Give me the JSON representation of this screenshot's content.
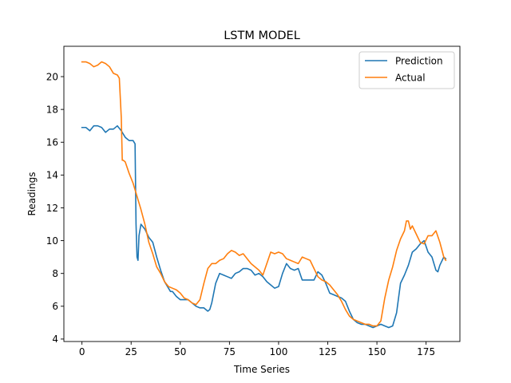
{
  "chart_data": {
    "type": "line",
    "title": "LSTM MODEL",
    "xlabel": "Time Series",
    "ylabel": "Readings",
    "xlim": [
      -9.2,
      192.2
    ],
    "ylim": [
      3.85,
      21.85
    ],
    "xticks": [
      0,
      25,
      50,
      75,
      100,
      125,
      150,
      175
    ],
    "yticks": [
      4,
      6,
      8,
      10,
      12,
      14,
      16,
      18,
      20
    ],
    "grid": false,
    "legend_position": "top-right",
    "series": [
      {
        "name": "Prediction",
        "color": "#1f77b4",
        "points": [
          [
            0,
            16.9
          ],
          [
            2,
            16.9
          ],
          [
            4,
            16.7
          ],
          [
            6,
            17.0
          ],
          [
            8,
            17.0
          ],
          [
            10,
            16.9
          ],
          [
            12,
            16.6
          ],
          [
            14,
            16.8
          ],
          [
            16,
            16.8
          ],
          [
            18,
            17.0
          ],
          [
            20,
            16.7
          ],
          [
            22,
            16.3
          ],
          [
            24,
            16.1
          ],
          [
            26,
            16.1
          ],
          [
            27,
            15.9
          ],
          [
            27.5,
            11.0
          ],
          [
            28,
            9.0
          ],
          [
            28.5,
            8.8
          ],
          [
            29,
            10.3
          ],
          [
            30,
            11.0
          ],
          [
            32,
            10.7
          ],
          [
            34,
            10.2
          ],
          [
            36,
            9.9
          ],
          [
            38,
            9.0
          ],
          [
            40,
            8.2
          ],
          [
            42,
            7.5
          ],
          [
            44,
            7.1
          ],
          [
            45,
            6.9
          ],
          [
            46,
            6.9
          ],
          [
            48,
            6.6
          ],
          [
            50,
            6.4
          ],
          [
            52,
            6.4
          ],
          [
            54,
            6.4
          ],
          [
            56,
            6.2
          ],
          [
            58,
            6.0
          ],
          [
            60,
            5.9
          ],
          [
            62,
            5.9
          ],
          [
            64,
            5.7
          ],
          [
            65,
            5.8
          ],
          [
            66,
            6.2
          ],
          [
            68,
            7.4
          ],
          [
            70,
            8.0
          ],
          [
            72,
            7.9
          ],
          [
            74,
            7.8
          ],
          [
            76,
            7.7
          ],
          [
            78,
            8.0
          ],
          [
            80,
            8.1
          ],
          [
            82,
            8.3
          ],
          [
            84,
            8.3
          ],
          [
            86,
            8.2
          ],
          [
            88,
            7.9
          ],
          [
            90,
            8.0
          ],
          [
            92,
            7.8
          ],
          [
            94,
            7.5
          ],
          [
            96,
            7.3
          ],
          [
            98,
            7.1
          ],
          [
            100,
            7.2
          ],
          [
            102,
            8.0
          ],
          [
            104,
            8.6
          ],
          [
            106,
            8.3
          ],
          [
            108,
            8.2
          ],
          [
            110,
            8.3
          ],
          [
            112,
            7.6
          ],
          [
            114,
            7.6
          ],
          [
            116,
            7.6
          ],
          [
            118,
            7.6
          ],
          [
            120,
            8.1
          ],
          [
            122,
            7.9
          ],
          [
            124,
            7.4
          ],
          [
            126,
            6.8
          ],
          [
            128,
            6.7
          ],
          [
            130,
            6.6
          ],
          [
            132,
            6.5
          ],
          [
            134,
            6.3
          ],
          [
            136,
            5.7
          ],
          [
            138,
            5.2
          ],
          [
            140,
            5.0
          ],
          [
            142,
            4.9
          ],
          [
            144,
            4.9
          ],
          [
            146,
            4.8
          ],
          [
            148,
            4.7
          ],
          [
            150,
            4.8
          ],
          [
            152,
            4.9
          ],
          [
            154,
            4.8
          ],
          [
            156,
            4.7
          ],
          [
            158,
            4.8
          ],
          [
            160,
            5.6
          ],
          [
            162,
            7.4
          ],
          [
            164,
            7.9
          ],
          [
            166,
            8.5
          ],
          [
            168,
            9.3
          ],
          [
            170,
            9.5
          ],
          [
            172,
            9.8
          ],
          [
            174,
            10.0
          ],
          [
            176,
            9.3
          ],
          [
            178,
            9.0
          ],
          [
            180,
            8.2
          ],
          [
            181,
            8.1
          ],
          [
            182,
            8.5
          ],
          [
            184,
            9.0
          ],
          [
            185,
            8.9
          ]
        ]
      },
      {
        "name": "Actual",
        "color": "#ff7f0e",
        "points": [
          [
            0,
            20.9
          ],
          [
            2,
            20.9
          ],
          [
            4,
            20.8
          ],
          [
            6,
            20.6
          ],
          [
            8,
            20.7
          ],
          [
            10,
            20.9
          ],
          [
            12,
            20.8
          ],
          [
            14,
            20.6
          ],
          [
            16,
            20.2
          ],
          [
            18,
            20.1
          ],
          [
            19,
            19.9
          ],
          [
            20,
            17.5
          ],
          [
            20.5,
            14.9
          ],
          [
            21,
            14.9
          ],
          [
            22,
            14.8
          ],
          [
            24,
            14.1
          ],
          [
            26,
            13.5
          ],
          [
            28,
            12.7
          ],
          [
            30,
            11.9
          ],
          [
            32,
            11.0
          ],
          [
            34,
            9.9
          ],
          [
            36,
            9.2
          ],
          [
            38,
            8.4
          ],
          [
            40,
            8.0
          ],
          [
            42,
            7.5
          ],
          [
            44,
            7.2
          ],
          [
            46,
            7.1
          ],
          [
            48,
            7.0
          ],
          [
            50,
            6.8
          ],
          [
            52,
            6.5
          ],
          [
            54,
            6.4
          ],
          [
            56,
            6.2
          ],
          [
            58,
            6.1
          ],
          [
            60,
            6.4
          ],
          [
            62,
            7.4
          ],
          [
            64,
            8.3
          ],
          [
            66,
            8.6
          ],
          [
            68,
            8.6
          ],
          [
            70,
            8.8
          ],
          [
            72,
            8.9
          ],
          [
            74,
            9.2
          ],
          [
            76,
            9.4
          ],
          [
            78,
            9.3
          ],
          [
            80,
            9.1
          ],
          [
            82,
            9.2
          ],
          [
            84,
            8.9
          ],
          [
            86,
            8.6
          ],
          [
            88,
            8.4
          ],
          [
            90,
            8.2
          ],
          [
            92,
            7.9
          ],
          [
            94,
            8.6
          ],
          [
            96,
            9.3
          ],
          [
            98,
            9.2
          ],
          [
            100,
            9.3
          ],
          [
            102,
            9.2
          ],
          [
            104,
            8.9
          ],
          [
            106,
            8.8
          ],
          [
            108,
            8.7
          ],
          [
            110,
            8.6
          ],
          [
            112,
            9.0
          ],
          [
            114,
            8.9
          ],
          [
            116,
            8.8
          ],
          [
            118,
            8.3
          ],
          [
            120,
            7.8
          ],
          [
            122,
            7.6
          ],
          [
            124,
            7.5
          ],
          [
            126,
            7.3
          ],
          [
            128,
            7.0
          ],
          [
            130,
            6.7
          ],
          [
            132,
            6.3
          ],
          [
            134,
            5.8
          ],
          [
            136,
            5.4
          ],
          [
            138,
            5.2
          ],
          [
            140,
            5.1
          ],
          [
            142,
            5.0
          ],
          [
            144,
            4.9
          ],
          [
            146,
            4.9
          ],
          [
            148,
            4.8
          ],
          [
            150,
            4.8
          ],
          [
            152,
            5.1
          ],
          [
            154,
            6.5
          ],
          [
            156,
            7.6
          ],
          [
            158,
            8.4
          ],
          [
            160,
            9.4
          ],
          [
            162,
            10.1
          ],
          [
            164,
            10.6
          ],
          [
            165,
            11.2
          ],
          [
            166,
            11.2
          ],
          [
            167,
            10.7
          ],
          [
            168,
            10.9
          ],
          [
            170,
            10.4
          ],
          [
            172,
            9.9
          ],
          [
            174,
            9.8
          ],
          [
            176,
            10.3
          ],
          [
            178,
            10.3
          ],
          [
            180,
            10.6
          ],
          [
            182,
            9.9
          ],
          [
            184,
            9.0
          ],
          [
            185,
            8.8
          ]
        ]
      }
    ]
  }
}
